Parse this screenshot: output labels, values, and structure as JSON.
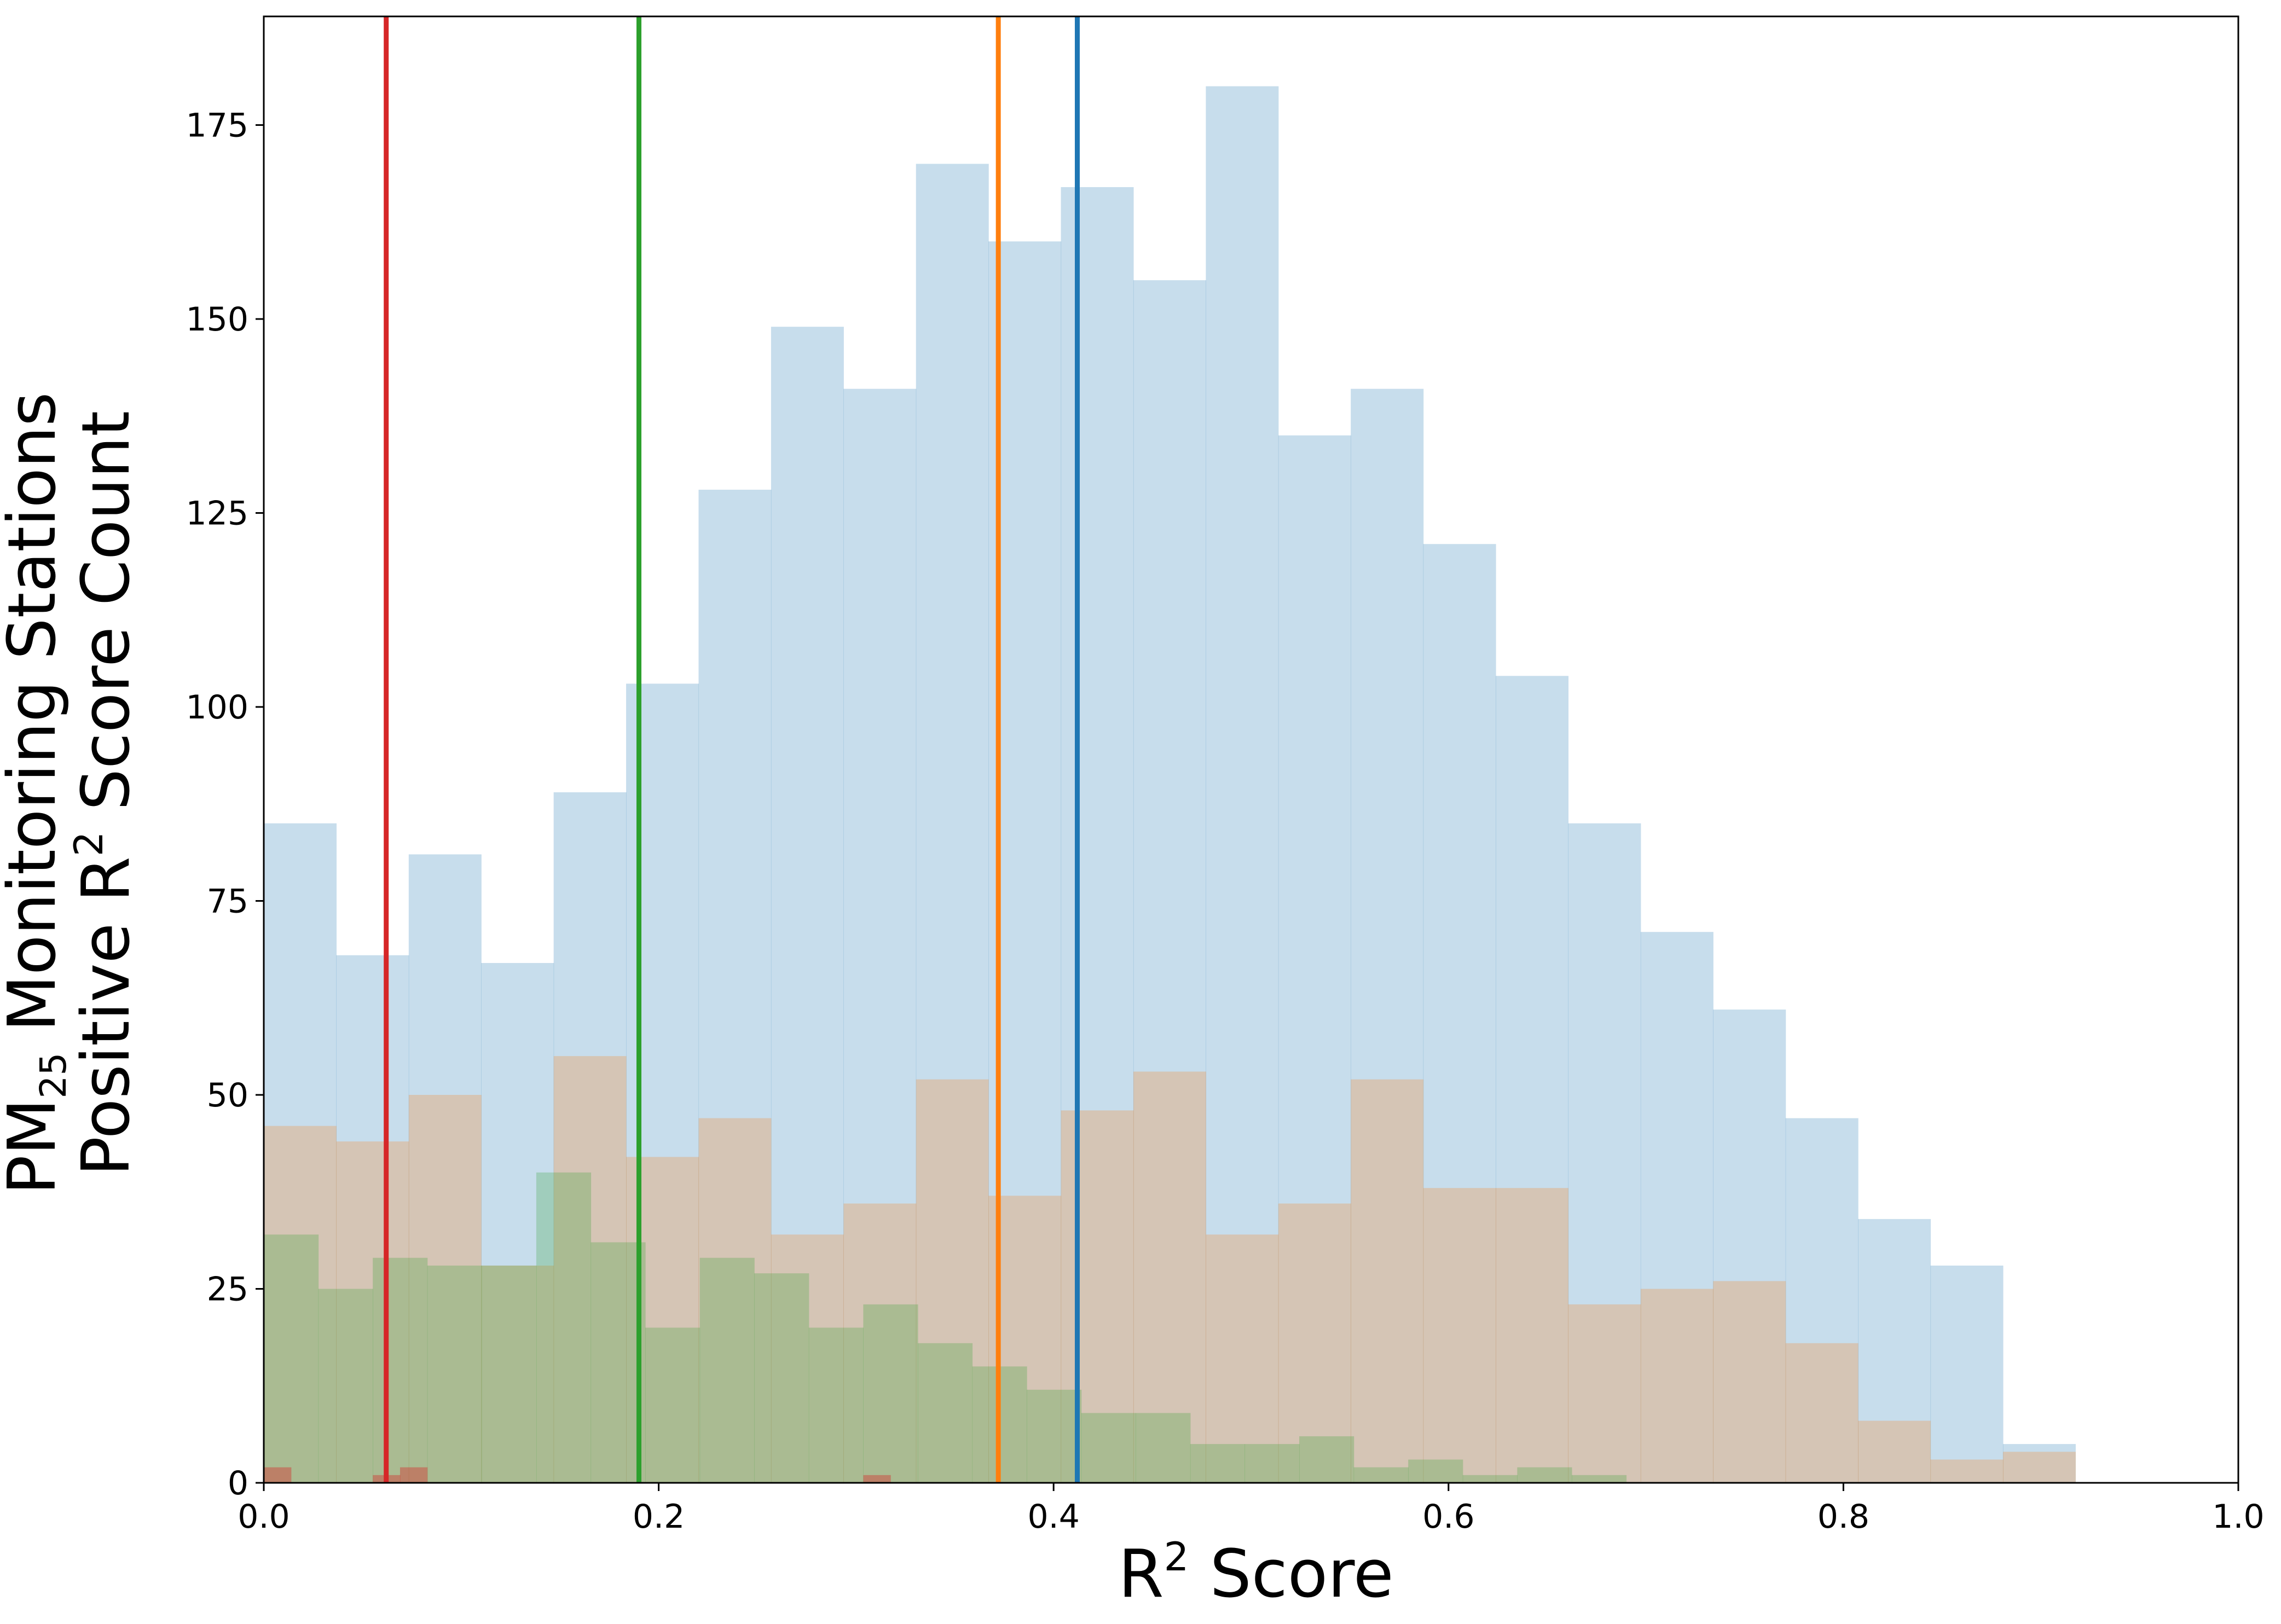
{
  "chart_data": {
    "type": "bar",
    "title": "",
    "xlabel": {
      "base": "R",
      "sup": "2",
      "rest": " Score"
    },
    "ylabel": {
      "line1": {
        "base": "PM",
        "sub": "25",
        "rest": " Monitoring Stations"
      },
      "line2": {
        "base": "Positive R",
        "sup": "2",
        "rest": " Score Count"
      }
    },
    "xlim": [
      0.0,
      1.0
    ],
    "ylim": [
      0,
      189
    ],
    "xticks": [
      0.0,
      0.2,
      0.4,
      0.6,
      0.8,
      1.0
    ],
    "xtick_labels": [
      "0.0",
      "0.2",
      "0.4",
      "0.6",
      "0.8",
      "1.0"
    ],
    "yticks": [
      0,
      25,
      50,
      75,
      100,
      125,
      150,
      175
    ],
    "ytick_labels": [
      "0",
      "25",
      "50",
      "75",
      "100",
      "125",
      "150",
      "175"
    ],
    "grid": false,
    "colors": {
      "blue": "#1f77b4",
      "orange": "#ff7f0e",
      "green": "#2ca02c",
      "red": "#d62728"
    },
    "histograms": [
      {
        "color": "#1f77b4",
        "alpha": 0.25,
        "bin_start": 0.0,
        "bin_width": 0.0367,
        "values": [
          85,
          68,
          81,
          67,
          89,
          103,
          128,
          149,
          141,
          170,
          160,
          167,
          155,
          180,
          135,
          141,
          121,
          104,
          85,
          71,
          61,
          47,
          34,
          28,
          5
        ]
      },
      {
        "color": "#ff7f0e",
        "alpha": 0.25,
        "bin_start": 0.0,
        "bin_width": 0.0367,
        "values": [
          46,
          44,
          50,
          28,
          55,
          42,
          47,
          32,
          36,
          52,
          37,
          48,
          53,
          32,
          36,
          52,
          38,
          38,
          23,
          25,
          26,
          18,
          8,
          3,
          4
        ]
      },
      {
        "color": "#2ca02c",
        "alpha": 0.25,
        "bin_start": 0.0,
        "bin_width": 0.0276,
        "values": [
          32,
          25,
          29,
          28,
          28,
          40,
          31,
          20,
          29,
          27,
          20,
          23,
          18,
          15,
          12,
          9,
          9,
          5,
          5,
          6,
          2,
          3,
          1,
          2,
          1
        ]
      },
      {
        "color": "#d62728",
        "alpha": 0.4,
        "bin_start": 0.0,
        "bin_width": 0.0138,
        "values": [
          2,
          0,
          0,
          0,
          1,
          2,
          0,
          0,
          0,
          0,
          0,
          0,
          0,
          0,
          0,
          0,
          0,
          0,
          0,
          0,
          0,
          0,
          1,
          0,
          0
        ]
      }
    ],
    "vlines": [
      {
        "x": 0.062,
        "color": "#d62728"
      },
      {
        "x": 0.19,
        "color": "#2ca02c"
      },
      {
        "x": 0.372,
        "color": "#ff7f0e"
      },
      {
        "x": 0.412,
        "color": "#1f77b4"
      }
    ]
  }
}
